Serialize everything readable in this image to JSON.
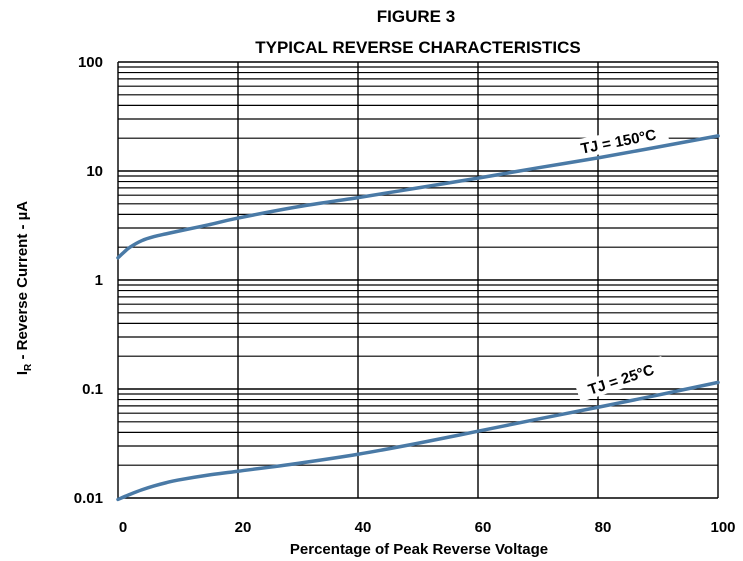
{
  "chart_data": {
    "type": "line",
    "title": "FIGURE 3",
    "subtitle": "TYPICAL REVERSE CHARACTERISTICS",
    "xlabel": "Percentage of Peak Reverse Voltage",
    "ylabel": "I_R - Reverse Current - µA",
    "ylabel_main": "I",
    "ylabel_sub": "R",
    "ylabel_rest": " - Reverse Current - µA",
    "xlim": [
      0,
      100
    ],
    "ylim": [
      0.01,
      100
    ],
    "yscale": "log",
    "grid": true,
    "xticks": [
      0,
      20,
      40,
      60,
      80,
      100
    ],
    "xtick_labels": [
      "0",
      "20",
      "40",
      "60",
      "80",
      "100"
    ],
    "yticks": [
      0.01,
      0.1,
      1,
      10,
      100
    ],
    "ytick_labels": [
      "0.01",
      "0.1",
      "1",
      "10",
      "100"
    ],
    "line_color": "#4a7aa6",
    "series": [
      {
        "name": "TJ = 150°C",
        "x": [
          0,
          1,
          2,
          4,
          6,
          8,
          10,
          15,
          20,
          30,
          40,
          50,
          60,
          70,
          80,
          90,
          100
        ],
        "y": [
          1.6,
          1.8,
          2.0,
          2.3,
          2.5,
          2.65,
          2.8,
          3.2,
          3.7,
          4.7,
          5.7,
          7.0,
          8.6,
          10.7,
          13.2,
          16.6,
          21.0
        ]
      },
      {
        "name": "TJ = 25°C",
        "x": [
          0,
          2,
          4,
          6,
          8,
          10,
          15,
          20,
          30,
          40,
          50,
          60,
          70,
          80,
          90,
          100
        ],
        "y": [
          0.0097,
          0.0108,
          0.0119,
          0.0129,
          0.0138,
          0.0146,
          0.0162,
          0.0176,
          0.0208,
          0.0252,
          0.0318,
          0.041,
          0.053,
          0.068,
          0.088,
          0.115
        ]
      }
    ],
    "annotations": [
      {
        "text": "TJ = 150°C",
        "x": 83.5,
        "y": 17.5,
        "angle": -11
      },
      {
        "text": "TJ = 25°C",
        "x": 84,
        "y": 0.115,
        "angle": -18
      }
    ]
  }
}
